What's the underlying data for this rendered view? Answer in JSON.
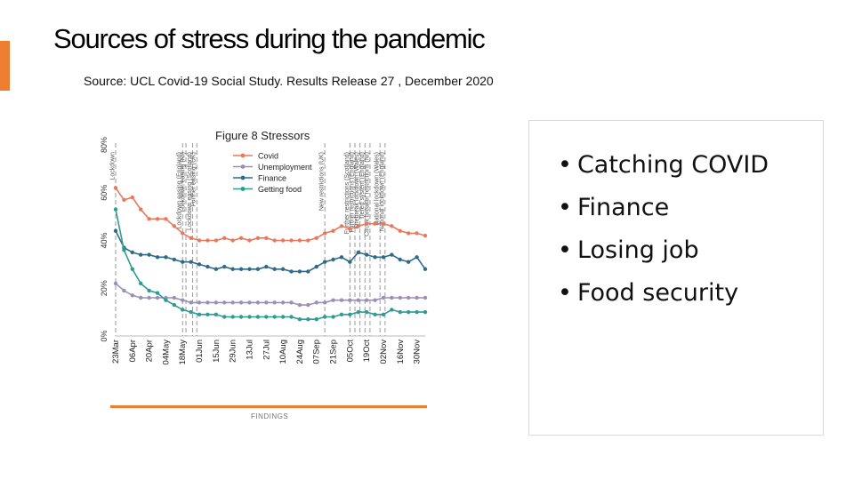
{
  "slide": {
    "title": "Sources of stress during the pandemic",
    "source": "Source:  UCL Covid-19 Social Study. Results Release 27 , December 2020",
    "footer_label": "FINDINGS",
    "accent_color": "#ed7d31",
    "bullets": [
      "Catching COVID",
      "Finance",
      "Losing job",
      "Food security"
    ]
  },
  "chart_data": {
    "type": "line",
    "title": "Figure 8 Stressors",
    "xlabel": "",
    "ylabel": "",
    "ylim": [
      0,
      80
    ],
    "y_ticks": [
      "0%",
      "20%",
      "40%",
      "60%",
      "80%"
    ],
    "y_tick_values": [
      0,
      20,
      40,
      60,
      80
    ],
    "x_tick_labels": [
      "23Mar",
      "06Apr",
      "20Apr",
      "04May",
      "18May",
      "01Jun",
      "15Jun",
      "29Jun",
      "13Jul",
      "27Jul",
      "10Aug",
      "24Aug",
      "07Sep",
      "21Sep",
      "05Oct",
      "19Oct",
      "02Nov",
      "16Nov",
      "30Nov"
    ],
    "x_weeks": [
      0,
      1,
      2,
      3,
      4,
      5,
      6,
      7,
      8,
      9,
      10,
      11,
      12,
      13,
      14,
      15,
      16,
      17,
      18,
      19,
      20,
      21,
      22,
      23,
      24,
      25,
      26,
      27,
      28,
      29,
      30,
      31,
      32,
      33,
      34,
      35,
      36,
      37
    ],
    "legend_position": "top-left",
    "grid": false,
    "series": [
      {
        "name": "Covid",
        "color": "#e9795d",
        "values": [
          62,
          57,
          58,
          53,
          49,
          49,
          49,
          46,
          43,
          41,
          40,
          40,
          40,
          41,
          40,
          41,
          40,
          41,
          41,
          40,
          40,
          40,
          40,
          40,
          41,
          43,
          44,
          46,
          45,
          46,
          47,
          47,
          47,
          46,
          44,
          43,
          43,
          42
        ]
      },
      {
        "name": "Unemployment",
        "color": "#9c8fb6",
        "values": [
          22,
          19,
          17,
          16,
          16,
          16,
          16,
          16,
          15,
          14,
          14,
          14,
          14,
          14,
          14,
          14,
          14,
          14,
          14,
          14,
          14,
          14,
          13,
          13,
          14,
          14,
          15,
          15,
          15,
          15,
          15,
          15,
          16,
          16,
          16,
          16,
          16,
          16
        ]
      },
      {
        "name": "Finance",
        "color": "#2e6b89",
        "values": [
          44,
          37,
          35,
          34,
          34,
          33,
          33,
          32,
          31,
          31,
          30,
          29,
          28,
          29,
          28,
          28,
          28,
          28,
          29,
          28,
          28,
          27,
          27,
          27,
          29,
          31,
          32,
          33,
          31,
          35,
          34,
          33,
          33,
          34,
          32,
          31,
          33,
          28
        ]
      },
      {
        "name": "Getting food",
        "color": "#2d9c92",
        "values": [
          53,
          36,
          28,
          22,
          19,
          18,
          15,
          13,
          11,
          10,
          9,
          9,
          9,
          8,
          8,
          8,
          8,
          8,
          8,
          8,
          8,
          8,
          7,
          7,
          7,
          8,
          8,
          9,
          9,
          10,
          10,
          9,
          9,
          11,
          10,
          10,
          10,
          10
        ]
      }
    ],
    "annotations": [
      {
        "week": 0,
        "text": "Lockdown"
      },
      {
        "week": 8,
        "text": "Lockdown easing (England)"
      },
      {
        "week": 8.4,
        "text": "Lockdown easing (NI)"
      },
      {
        "week": 9.2,
        "text": "Lockdown easing (Scotland)"
      },
      {
        "week": 9.7,
        "text": "Further easing (UK)"
      },
      {
        "week": 25,
        "text": "New restrictions (UK)"
      },
      {
        "week": 28,
        "text": "Further restrictions (Scotland)"
      },
      {
        "week": 28.6,
        "text": "Further restrictions (England)"
      },
      {
        "week": 29.2,
        "text": "Firebreak lockdown (Wales)"
      },
      {
        "week": 29.8,
        "text": "Tiered system (England)"
      },
      {
        "week": 30.4,
        "text": "Circuit breaker restrictions (NI)"
      },
      {
        "week": 31.6,
        "text": "National lockdown (Wales)"
      },
      {
        "week": 32.2,
        "text": "National lockdown (England)"
      }
    ]
  }
}
